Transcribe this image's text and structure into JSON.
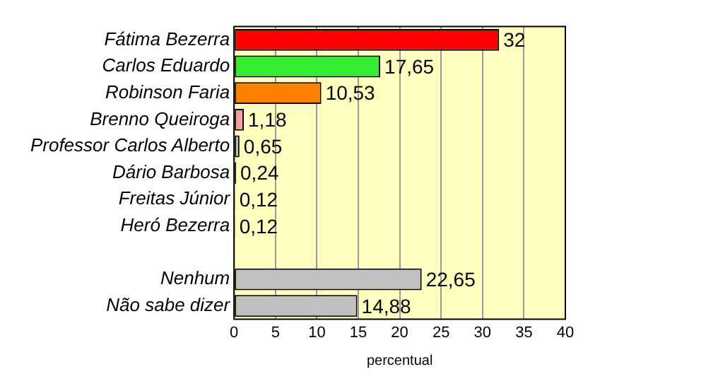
{
  "chart_data": {
    "type": "bar",
    "orientation": "horizontal",
    "xlabel": "percentual",
    "categories": [
      "Fátima Bezerra",
      "Carlos Eduardo",
      "Robinson Faria",
      "Brenno Queiroga",
      "Professor Carlos Alberto",
      "Dário Barbosa",
      "Freitas Júnior",
      "Heró Bezerra",
      null,
      "Nenhum",
      "Não sabe dizer"
    ],
    "values": [
      32,
      17.65,
      10.53,
      1.18,
      0.65,
      0.24,
      0.12,
      0.12,
      null,
      22.65,
      14.88
    ],
    "value_labels": [
      "32",
      "17,65",
      "10,53",
      "1,18",
      "0,65",
      "0,24",
      "0,12",
      "0,12",
      null,
      "22,65",
      "14,88"
    ],
    "colors": [
      "#ff0000",
      "#33ee33",
      "#ff8000",
      "#f4a0a0",
      "#c0c0c0",
      "#000000",
      "#000000",
      "#000000",
      "#c0c0c0",
      "#c0c0c0",
      "#c0c0c0"
    ],
    "xlim": [
      0,
      40
    ],
    "xticks": [
      0,
      5,
      10,
      15,
      20,
      25,
      30,
      35,
      40
    ],
    "grid": "x",
    "legend": false
  }
}
